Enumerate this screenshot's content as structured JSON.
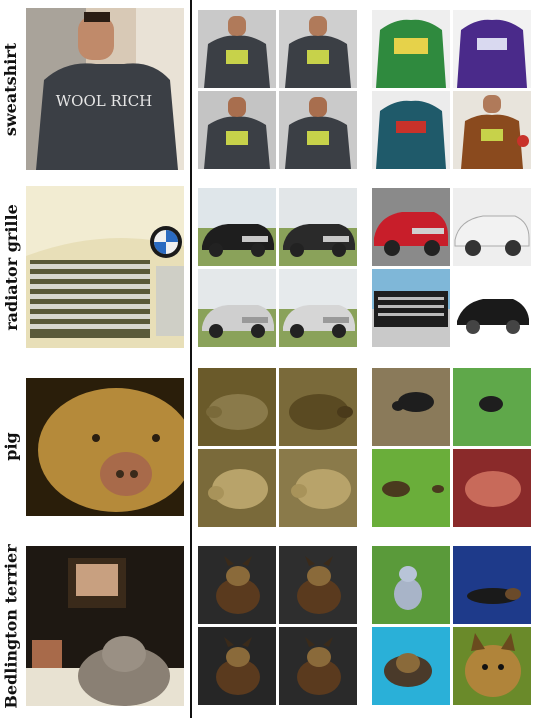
{
  "rows": [
    {
      "label": "sweatshirt"
    },
    {
      "label": "radiator grille"
    },
    {
      "label": "pig"
    },
    {
      "label": "Bedlington terrier"
    }
  ],
  "colors": {
    "divider": "#111111",
    "background": "#ffffff",
    "sweatshirt_gray": "#3b3f45",
    "sweatshirt_green": "#2f8a3e",
    "sweatshirt_purple": "#4a2a8a",
    "sweatshirt_teal": "#1f5a6a",
    "sweatshirt_brown": "#8a4a1e",
    "car_red": "#c81e2a",
    "grass_green": "#5fa84a",
    "pig_tan": "#c49a4a"
  },
  "sweatshirt_text": "WOOL RICH"
}
